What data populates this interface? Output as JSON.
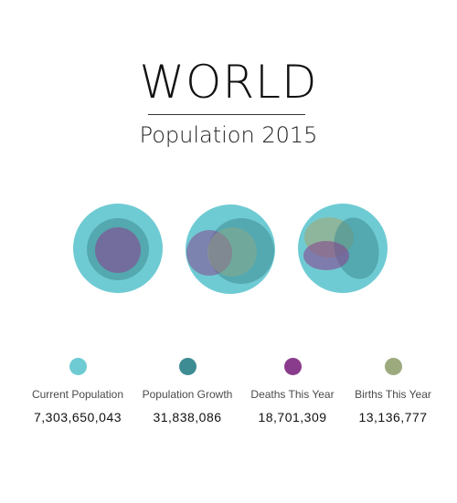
{
  "header": {
    "title": "WORLD",
    "subtitle": "Population 2015"
  },
  "colors": {
    "current_population": "#6fcbd3",
    "population_growth": "#3e8c93",
    "deaths": "#8a3c8c",
    "births": "#9caa7e"
  },
  "legend": [
    {
      "label": "Current Population",
      "value": "7,303,650,043",
      "color_key": "current_population"
    },
    {
      "label": "Population Growth",
      "value": "31,838,086",
      "color_key": "population_growth"
    },
    {
      "label": "Deaths This Year",
      "value": "18,701,309",
      "color_key": "deaths"
    },
    {
      "label": "Births This Year",
      "value": "13,136,777",
      "color_key": "births"
    }
  ]
}
